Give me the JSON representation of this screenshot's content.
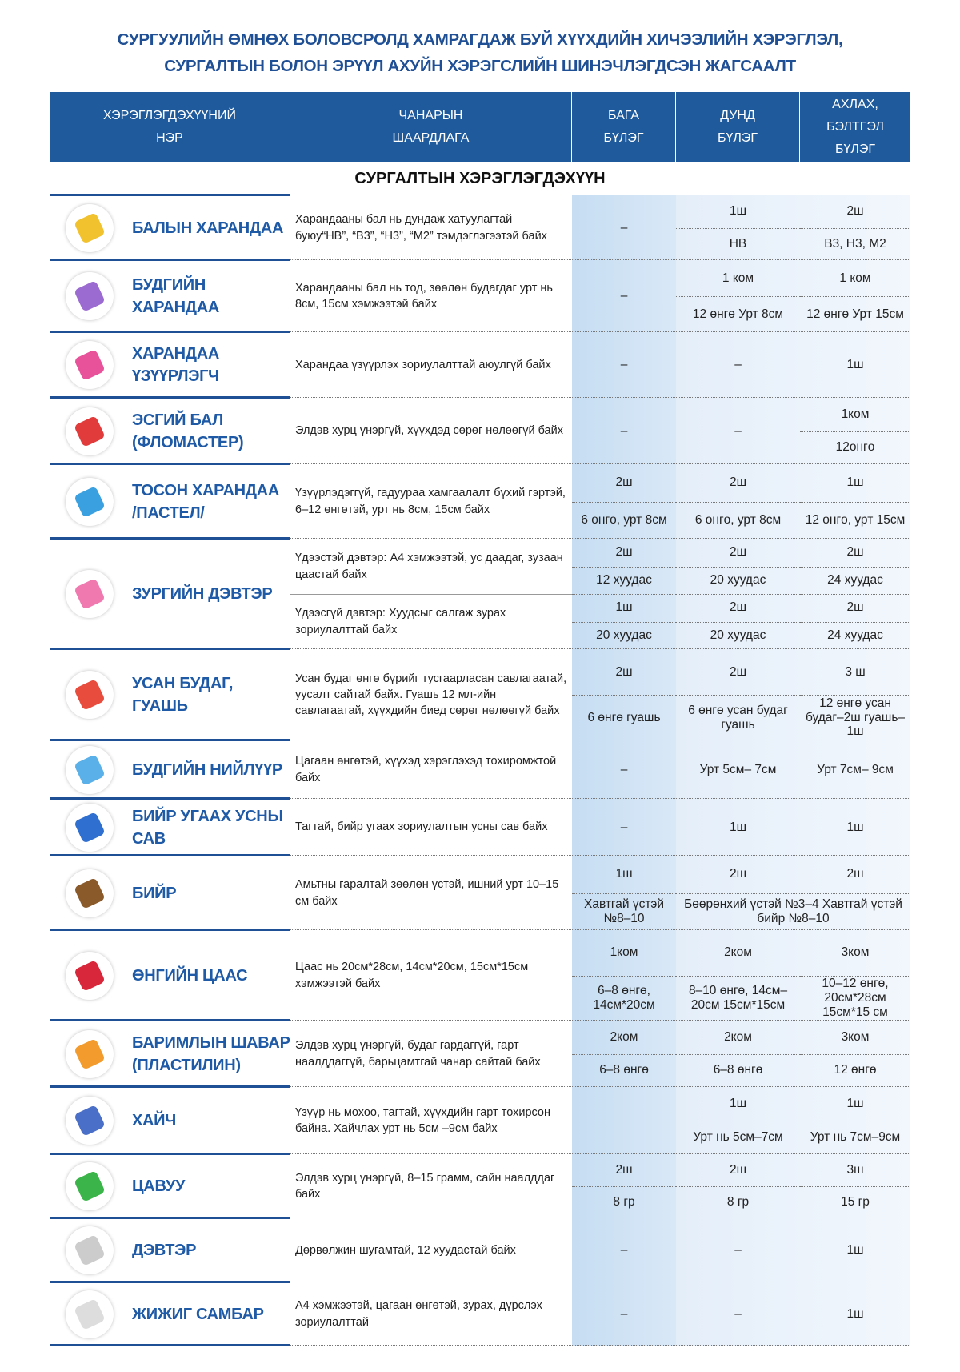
{
  "title": [
    "СУРГУУЛИЙН ӨМНӨХ БОЛОВСРОЛД ХАМРАГДАЖ БУЙ ХҮҮХДИЙН ХИЧЭЭЛИЙН ХЭРЭГЛЭЛ,",
    "СУРГАЛТЫН БОЛОН ЭРҮҮЛ АХУЙН ХЭРЭГСЛИЙН ШИНЭЧЛЭГДСЭН ЖАГСААЛТ"
  ],
  "header": {
    "columns": [
      [
        "ХЭРЭГЛЭГДЭХҮҮНИЙ",
        "НЭР"
      ],
      [
        "ЧАНАРЫН",
        "ШААРДЛАГА"
      ],
      [
        "БАГА",
        "БҮЛЭГ"
      ],
      [
        "ДУНД",
        "БҮЛЭГ"
      ],
      [
        "АХЛАХ,",
        "БЭЛТГЭЛ",
        "БҮЛЭГ"
      ]
    ]
  },
  "section": "СУРГАЛТЫН ХЭРЭГЛЭГДЭХҮҮН",
  "items": [
    {
      "name": [
        "БАЛЫН ХАРАНДАА"
      ],
      "requirement": [
        "Харандааны бал нь дундаж хатуулагтай буюу“НВ”, “В3”, “Н3”, “М2” тэмдэглэгээтэй байх"
      ],
      "columns": [
        [
          "–"
        ],
        [
          "1ш",
          "НВ"
        ],
        [
          "2ш",
          "В3, Н3, М2"
        ]
      ]
    },
    {
      "name": [
        "БУДГИЙН",
        "ХАРАНДАА"
      ],
      "requirement": [
        "Харандааны бал нь тод, зөөлөн будагдаг урт нь 8см, 15см хэмжээтэй байх"
      ],
      "columns": [
        [
          "–"
        ],
        [
          "1 ком",
          "12 өнгө Урт 8см"
        ],
        [
          "1 ком",
          "12 өнгө Урт 15см"
        ]
      ]
    },
    {
      "name": [
        "ХАРАНДАА",
        "ҮЗҮҮРЛЭГЧ"
      ],
      "requirement": [
        "Харандаа үзүүрлэх зориулалттай аюулгүй байх"
      ],
      "columns": [
        [
          "–"
        ],
        [
          "–"
        ],
        [
          "1ш"
        ]
      ]
    },
    {
      "name": [
        "ЭСГИЙ БАЛ",
        "(ФЛОМАСТЕР)"
      ],
      "requirement": [
        "Элдэв хурц үнэргүй, хүүхдэд сөрөг нөлөөгүй байх"
      ],
      "columns": [
        [
          "–"
        ],
        [
          "–"
        ],
        [
          "1ком",
          "12өнгө"
        ]
      ]
    },
    {
      "name": [
        "ТОСОН ХАРАНДАА",
        "/ПАСТЕЛ/"
      ],
      "requirement": [
        "Үзүүрлэдэггүй, гадуураа хамгаалалт бүхий гэртэй, 6–12 өнгөтэй, урт нь 8см, 15см байх"
      ],
      "columns": [
        [
          "2ш",
          "6 өнгө, урт 8см"
        ],
        [
          "2ш",
          "6 өнгө, урт 8см"
        ],
        [
          "1ш",
          "12 өнгө, урт 15см"
        ]
      ]
    },
    {
      "name": [
        "ЗУРГИЙН ДЭВТЭР"
      ],
      "requirement": [
        "Үдээстэй дэвтэр: А4 хэмжээтэй, ус даадаг, зузаан цаастай байх",
        "Үдээсгүй дэвтэр: Хуудсыг салгаж зурах зориулалттай байх"
      ],
      "columns": [
        [
          "2ш",
          "12 хуудас",
          "1ш",
          "20 хуудас"
        ],
        [
          "2ш",
          "20 хуудас",
          "2ш",
          "20 хуудас"
        ],
        [
          "2ш",
          "24 хуудас",
          "2ш",
          "24 хуудас"
        ]
      ]
    },
    {
      "name": [
        "УСАН БУДАГ,",
        "ГУАШЬ"
      ],
      "requirement": [
        "Усан будаг өнгө бүрийг тусгаарласан савлагаатай, уусалт сайтай байх. Гуашь 12 мл-ийн савлагаатай, хүүхдийн биед сөрөг нөлөөгүй байх"
      ],
      "columns": [
        [
          "2ш",
          "6 өнгө гуашь"
        ],
        [
          "2ш",
          "6 өнгө усан будаг гуашь"
        ],
        [
          "3 ш",
          "12 өнгө усан будаг–2ш гуашь–1ш"
        ]
      ]
    },
    {
      "name": [
        "БУДГИЙН НИЙЛҮҮР"
      ],
      "requirement": [
        "Цагаан өнгөтэй, хүүхэд хэрэглэхэд тохиромжтой байх"
      ],
      "columns": [
        [
          "–"
        ],
        [
          "Урт 5см– 7см"
        ],
        [
          "Урт 7см– 9см"
        ]
      ]
    },
    {
      "name": [
        "БИЙР УГААХ УСНЫ",
        "САВ"
      ],
      "requirement": [
        "Тагтай, бийр угаах зориулалтын усны сав байх"
      ],
      "columns": [
        [
          "–"
        ],
        [
          "1ш"
        ],
        [
          "1ш"
        ]
      ]
    },
    {
      "name": [
        "БИЙР"
      ],
      "requirement": [
        "Амьтны гаралтай зөөлөн үстэй, ишний урт 10–15 см байх"
      ],
      "columns": [
        [
          "1ш",
          "Хавтгай үстэй №8–10"
        ],
        [
          "2ш",
          "Бөөрөнхий үстэй №3–4 Хавтгай үстэй бийр №8–10"
        ],
        [
          "2ш",
          null
        ]
      ]
    },
    {
      "name": [
        "ӨНГИЙН ЦААС"
      ],
      "requirement": [
        "Цаас нь 20см*28см, 14см*20см, 15см*15см хэмжээтэй байх"
      ],
      "columns": [
        [
          "1ком",
          "6–8 өнгө, 14см*20см"
        ],
        [
          "2ком",
          "8–10 өнгө, 14см–20см 15см*15см"
        ],
        [
          "3ком",
          "10–12 өнгө, 20см*28см 15см*15 см"
        ]
      ]
    },
    {
      "name": [
        "БАРИМЛЫН ШАВАР",
        "(ПЛАСТИЛИН)"
      ],
      "requirement": [
        "Элдэв хурц үнэргүй, будаг гардаггүй, гарт наалддаггүй, барьцамтгай чанар сайтай байх"
      ],
      "columns": [
        [
          "2ком",
          "6–8 өнгө"
        ],
        [
          "2ком",
          "6–8 өнгө"
        ],
        [
          "3ком",
          "12 өнгө"
        ]
      ]
    },
    {
      "name": [
        "ХАЙЧ"
      ],
      "requirement": [
        "Үзүүр нь мохоо, тагтай, хүүхдийн гарт тохирсон байна. Хайчлах урт нь 5см –9см байх"
      ],
      "columns": [
        [],
        [
          "1ш",
          "Урт нь 5см–7см"
        ],
        [
          "1ш",
          "Урт нь 7см–9см"
        ]
      ]
    },
    {
      "name": [
        "ЦАВУУ"
      ],
      "requirement": [
        "Элдэв хурц үнэргүй, 8–15 грамм, сайн наалддаг байх"
      ],
      "columns": [
        [
          "2ш",
          "8 гр"
        ],
        [
          "2ш",
          "8 гр"
        ],
        [
          "3ш",
          "15 гр"
        ]
      ]
    },
    {
      "name": [
        "ДЭВТЭР"
      ],
      "requirement": [
        "Дөрвөлжин шугамтай, 12 хуудастай байх"
      ],
      "columns": [
        [
          "–"
        ],
        [
          "–"
        ],
        [
          "1ш"
        ]
      ]
    },
    {
      "name": [
        "ЖИЖИГ САМБАР"
      ],
      "requirement": [
        "А4 хэмжээтэй, цагаан өнгөтэй, зурах, дүрслэх зориулалттай"
      ],
      "columns": [
        [
          "–"
        ],
        [
          "–"
        ],
        [
          "1ш"
        ]
      ]
    }
  ]
}
